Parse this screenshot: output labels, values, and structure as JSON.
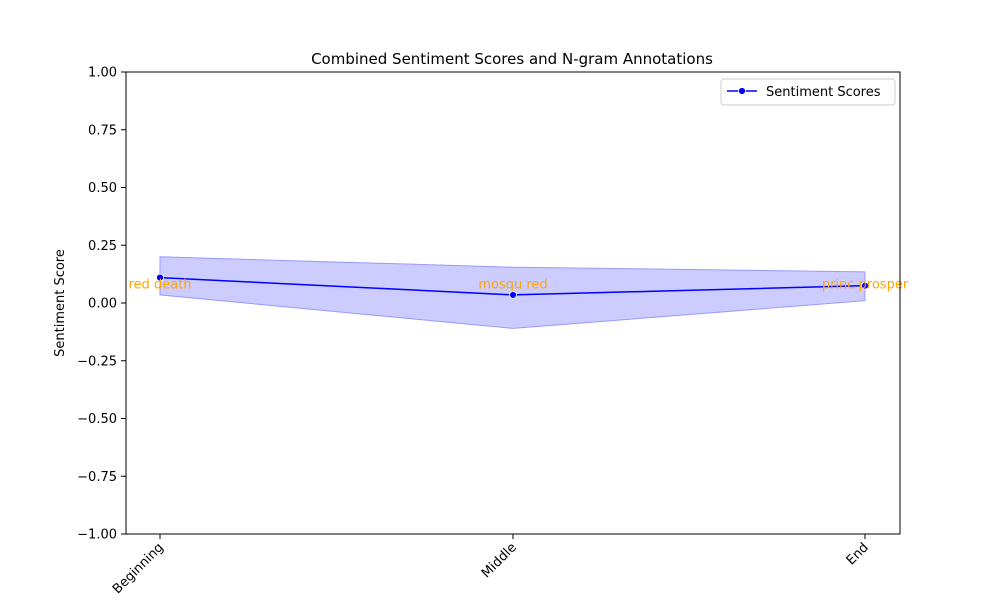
{
  "chart_data": {
    "type": "line",
    "title": "Combined Sentiment Scores and N-gram Annotations",
    "xlabel": "",
    "ylabel": "Sentiment Score",
    "categories": [
      "Beginning",
      "Middle",
      "End"
    ],
    "ylim": [
      -1.0,
      1.0
    ],
    "yticks": [
      1.0,
      0.75,
      0.5,
      0.25,
      0.0,
      -0.25,
      -0.5,
      -0.75,
      -1.0
    ],
    "ytick_labels": [
      "1.00",
      "0.75",
      "0.50",
      "0.25",
      "0.00",
      "−0.25",
      "−0.50",
      "−0.75",
      "−1.00"
    ],
    "grid": false,
    "legend_position": "top-right",
    "series": [
      {
        "name": "Sentiment Scores",
        "values": [
          0.11,
          0.035,
          0.075
        ],
        "band_upper": [
          0.2,
          0.155,
          0.135
        ],
        "band_lower": [
          0.035,
          -0.11,
          0.01
        ],
        "color": "#0000ff",
        "band_color": "#ccccff"
      }
    ],
    "annotations": [
      {
        "category": "Beginning",
        "y": 0.08,
        "text": "red death"
      },
      {
        "category": "Middle",
        "y": 0.08,
        "text": "mosqu red"
      },
      {
        "category": "End",
        "y": 0.08,
        "text": "princ prosper"
      }
    ],
    "annotation_color": "#ffa500"
  }
}
